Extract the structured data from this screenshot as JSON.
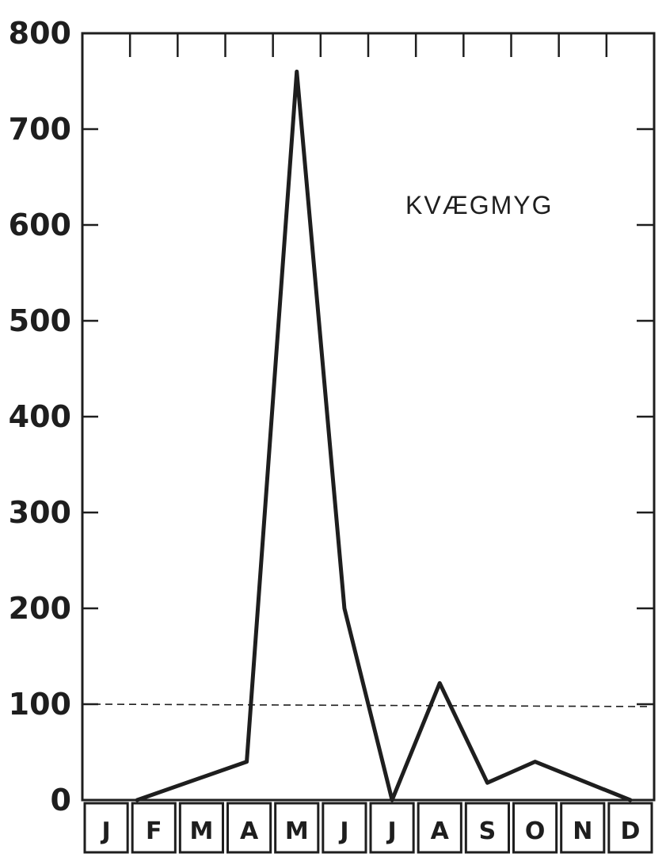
{
  "chart_data": {
    "type": "line",
    "title": "",
    "xlabel": "",
    "ylabel": "",
    "annotation": "KVÆGMYG",
    "categories": [
      "J",
      "F",
      "M",
      "A",
      "M",
      "J",
      "J",
      "A",
      "S",
      "O",
      "N",
      "D"
    ],
    "series": [
      {
        "points": [
          {
            "x": 1.15,
            "y": 0
          },
          {
            "x": 3.45,
            "y": 40
          },
          {
            "x": 4.5,
            "y": 760
          },
          {
            "x": 5.5,
            "y": 200
          },
          {
            "x": 6.5,
            "y": 0
          },
          {
            "x": 7.5,
            "y": 122
          },
          {
            "x": 8.5,
            "y": 18
          },
          {
            "x": 9.5,
            "y": 40
          },
          {
            "x": 11.5,
            "y": 0
          }
        ]
      }
    ],
    "reference_line": {
      "y": 100,
      "style": "dashed"
    },
    "yticks": [
      0,
      100,
      200,
      300,
      400,
      500,
      600,
      700,
      800
    ],
    "ylim": [
      0,
      800
    ],
    "xlim": [
      0,
      12
    ],
    "grid": false,
    "colors": {
      "ink": "#1e1e1e",
      "background": "#ffffff"
    }
  }
}
